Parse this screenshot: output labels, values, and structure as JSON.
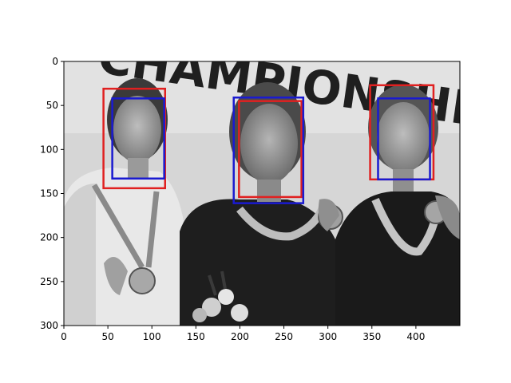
{
  "figure": {
    "image_caption_text": "CHAMPIONSHIPS",
    "x_ticks": [
      "0",
      "50",
      "100",
      "150",
      "200",
      "250",
      "300",
      "350",
      "400"
    ],
    "y_ticks": [
      "0",
      "50",
      "100",
      "150",
      "200",
      "250",
      "300"
    ]
  },
  "chart_data": {
    "type": "image",
    "xlim": [
      0,
      450
    ],
    "ylim": [
      300,
      0
    ],
    "image_width": 450,
    "image_height": 300,
    "grid": false,
    "x_tick_values": [
      0,
      50,
      100,
      150,
      200,
      250,
      300,
      350,
      400
    ],
    "y_tick_values": [
      0,
      50,
      100,
      150,
      200,
      250,
      300
    ],
    "boxes": [
      {
        "color": "#e02020",
        "x0": 45,
        "y0": 31,
        "x1": 115,
        "y1": 144
      },
      {
        "color": "#1a1ad0",
        "x0": 55,
        "y0": 42,
        "x1": 114,
        "y1": 133
      },
      {
        "color": "#e02020",
        "x0": 199,
        "y0": 45,
        "x1": 270,
        "y1": 154
      },
      {
        "color": "#1a1ad0",
        "x0": 193,
        "y0": 41,
        "x1": 272,
        "y1": 161
      },
      {
        "color": "#e02020",
        "x0": 348,
        "y0": 27,
        "x1": 420,
        "y1": 134
      },
      {
        "color": "#1a1ad0",
        "x0": 357,
        "y0": 42,
        "x1": 416,
        "y1": 134
      }
    ]
  }
}
